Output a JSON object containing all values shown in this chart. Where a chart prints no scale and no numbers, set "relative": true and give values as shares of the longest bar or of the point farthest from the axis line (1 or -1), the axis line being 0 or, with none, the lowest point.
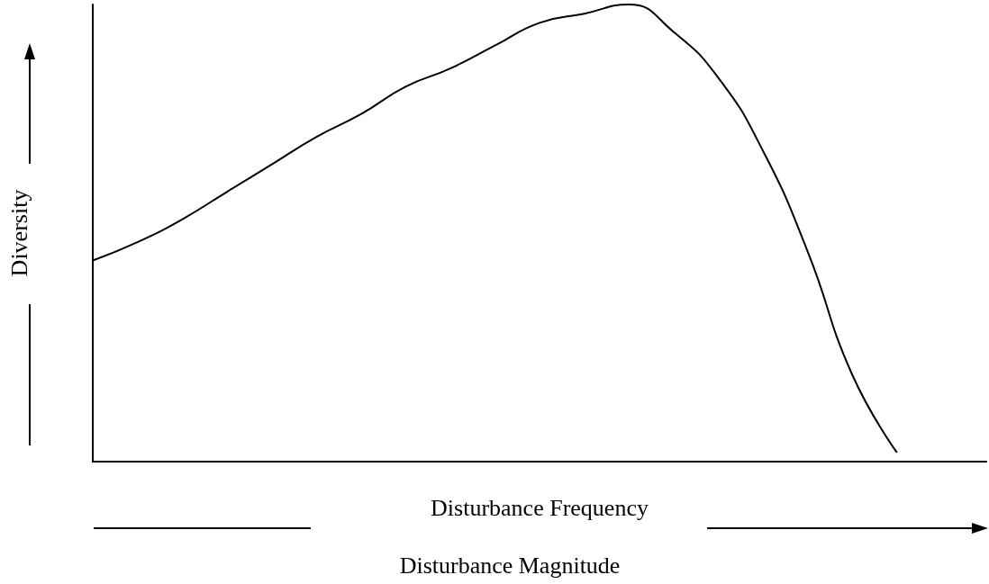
{
  "chart_data": {
    "type": "line",
    "relative": true,
    "xlabel": "Disturbance Frequency",
    "ylabel": "Diversity",
    "annotations": [
      "Disturbance Magnitude"
    ],
    "categories": [
      null,
      null,
      null,
      null,
      null,
      null,
      null,
      null,
      null,
      null,
      null,
      null,
      null,
      null,
      null,
      null,
      null,
      null,
      null,
      null,
      null
    ],
    "series": [
      {
        "color": "#000000",
        "values": [
          0.44,
          0.48,
          0.53,
          0.59,
          0.65,
          0.71,
          0.76,
          0.82,
          0.86,
          0.91,
          0.96,
          0.98,
          1,
          0.94,
          0.84,
          0.68,
          0.46,
          0.19,
          0.02,
          null,
          null
        ]
      }
    ],
    "grid": false,
    "marker": "none",
    "line_style": "solid"
  }
}
